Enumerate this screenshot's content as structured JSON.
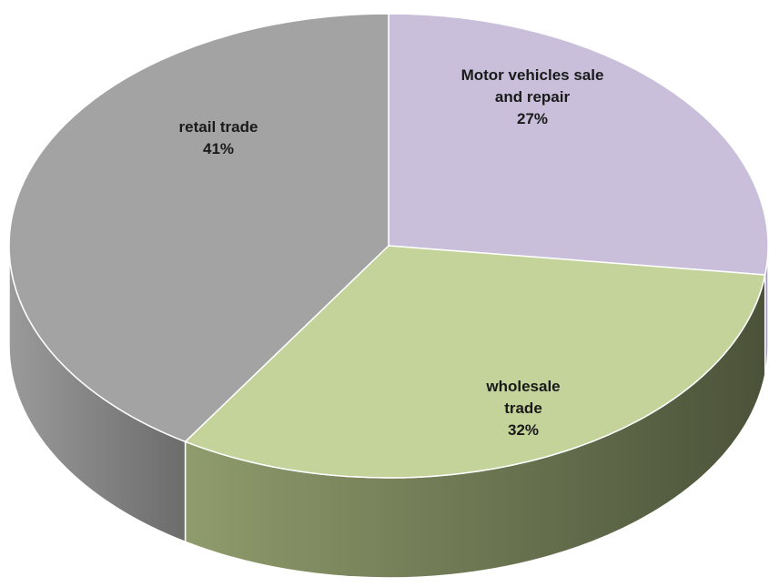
{
  "chart_data": {
    "type": "pie",
    "style": "3d",
    "title": "",
    "legend": "none",
    "slices": [
      {
        "label": "Motor vehicles sale and repair",
        "label_lines": [
          "Motor vehicles sale",
          "and repair"
        ],
        "value": 27,
        "value_text": "27%",
        "color": "#c9bfdb",
        "side_color": "#a79cbd"
      },
      {
        "label": "wholesale trade",
        "label_lines": [
          "wholesale",
          "trade"
        ],
        "value": 32,
        "value_text": "32%",
        "color": "#c3d39a",
        "side_color_light": "#8f9c6c",
        "side_color_dark": "#4b5239"
      },
      {
        "label": "retail trade",
        "label_lines": [
          "retail trade"
        ],
        "value": 41,
        "value_text": "41%",
        "color": "#a3a3a3",
        "side_color_light": "#9a9a9a",
        "side_color_dark": "#6c6c6c"
      }
    ]
  }
}
